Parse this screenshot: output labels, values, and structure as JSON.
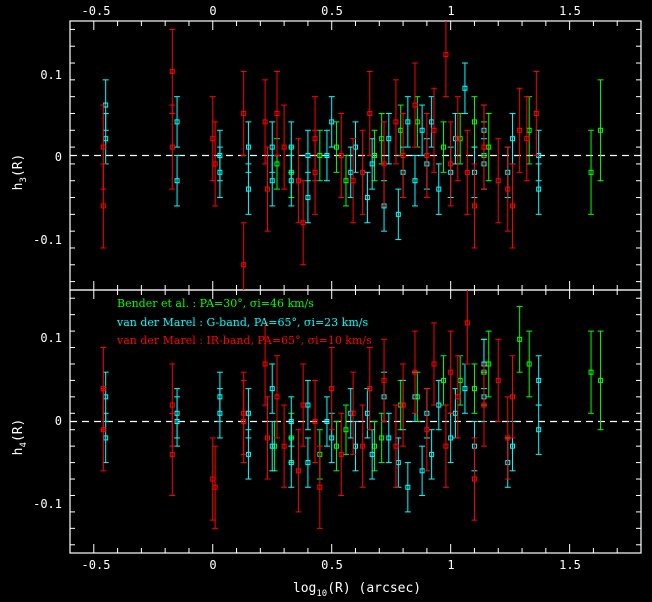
{
  "chart_data": {
    "type": "scatter",
    "panels": [
      {
        "id": "h3",
        "ylabel": "h3(R)",
        "ylabel_main": "h",
        "ylabel_sub": "3",
        "ylabel_tail": "(R)",
        "xlim": [
          -0.6,
          1.8
        ],
        "ylim": [
          -0.16,
          0.16
        ],
        "yticks": [
          0.1,
          0,
          -0.1
        ],
        "ytick_labels": [
          "0.1",
          "0",
          "-0.1"
        ],
        "zero_line": true
      },
      {
        "id": "h4",
        "ylabel": "h4(R)",
        "ylabel_main": "h",
        "ylabel_sub": "4",
        "ylabel_tail": "(R)",
        "xlim": [
          -0.6,
          1.8
        ],
        "ylim": [
          -0.16,
          0.16
        ],
        "yticks": [
          0.1,
          0,
          -0.1
        ],
        "ytick_labels": [
          "0.1",
          "0",
          "-0.1"
        ],
        "zero_line": true
      }
    ],
    "xticks": [
      -0.5,
      0,
      0.5,
      1,
      1.5
    ],
    "xtick_labels": [
      "-0.5",
      "0",
      "0.5",
      "1",
      "1.5"
    ],
    "xlabel": "log10(R) (arcsec)",
    "xlabel_main": "log",
    "xlabel_sub": "10",
    "xlabel_tail": "(R) (arcsec)",
    "legend": {
      "placement": "top-left of lower panel",
      "entries": [
        {
          "text": "Bender et al. : PA=30°, σi=46 km/s",
          "color": "#00ff00"
        },
        {
          "text": "van der Marel : G-band, PA=65°, σi=23 km/s",
          "color": "#00ffff"
        },
        {
          "text": "van der Marel : IR-band, PA=65°, σi=10 km/s",
          "color": "#ff0000"
        }
      ]
    },
    "series": [
      {
        "name": "Bender et al. : PA=30°, σi=46 km/s",
        "color": "#00ff00",
        "h3": [
          [
            0.27,
            -0.01,
            0.03
          ],
          [
            0.33,
            -0.02,
            0.03
          ],
          [
            0.45,
            0.0,
            0.03
          ],
          [
            0.52,
            0.01,
            0.03
          ],
          [
            0.56,
            -0.03,
            0.03
          ],
          [
            0.68,
            0.0,
            0.03
          ],
          [
            0.71,
            0.02,
            0.03
          ],
          [
            0.79,
            0.03,
            0.03
          ],
          [
            0.86,
            0.04,
            0.03
          ],
          [
            0.97,
            0.01,
            0.03
          ],
          [
            1.04,
            0.02,
            0.03
          ],
          [
            1.1,
            0.04,
            0.03
          ],
          [
            1.14,
            0.0,
            0.04
          ],
          [
            1.16,
            0.01,
            0.04
          ],
          [
            1.33,
            0.03,
            0.04
          ],
          [
            1.59,
            -0.02,
            0.05
          ],
          [
            1.63,
            0.03,
            0.06
          ]
        ],
        "h4": [
          [
            0.26,
            -0.03,
            0.03
          ],
          [
            0.33,
            -0.02,
            0.03
          ],
          [
            0.45,
            -0.04,
            0.03
          ],
          [
            0.52,
            -0.03,
            0.03
          ],
          [
            0.56,
            -0.01,
            0.03
          ],
          [
            0.68,
            -0.03,
            0.03
          ],
          [
            0.71,
            -0.02,
            0.03
          ],
          [
            0.79,
            0.02,
            0.03
          ],
          [
            0.86,
            0.03,
            0.03
          ],
          [
            0.97,
            0.05,
            0.03
          ],
          [
            1.04,
            0.05,
            0.03
          ],
          [
            1.1,
            0.04,
            0.03
          ],
          [
            1.14,
            0.06,
            0.04
          ],
          [
            1.16,
            0.07,
            0.04
          ],
          [
            1.29,
            0.1,
            0.04
          ],
          [
            1.33,
            0.07,
            0.04
          ],
          [
            1.59,
            0.06,
            0.05
          ],
          [
            1.63,
            0.05,
            0.06
          ]
        ]
      },
      {
        "name": "van der Marel : G-band, PA=65°, σi=23 km/s",
        "color": "#00ffff",
        "h3": [
          [
            -0.45,
            0.06,
            0.03
          ],
          [
            -0.45,
            0.02,
            0.03
          ],
          [
            -0.15,
            0.04,
            0.03
          ],
          [
            -0.15,
            -0.03,
            0.03
          ],
          [
            0.03,
            -0.02,
            0.03
          ],
          [
            0.03,
            0.0,
            0.03
          ],
          [
            0.15,
            0.01,
            0.03
          ],
          [
            0.15,
            -0.04,
            0.03
          ],
          [
            0.25,
            0.01,
            0.03
          ],
          [
            0.25,
            -0.03,
            0.03
          ],
          [
            0.33,
            0.01,
            0.03
          ],
          [
            0.33,
            -0.03,
            0.03
          ],
          [
            0.4,
            0.0,
            0.03
          ],
          [
            0.4,
            -0.05,
            0.03
          ],
          [
            0.48,
            0.0,
            0.03
          ],
          [
            0.5,
            0.04,
            0.03
          ],
          [
            0.58,
            -0.02,
            0.03
          ],
          [
            0.6,
            0.01,
            0.03
          ],
          [
            0.65,
            -0.05,
            0.03
          ],
          [
            0.67,
            -0.01,
            0.03
          ],
          [
            0.72,
            -0.06,
            0.03
          ],
          [
            0.74,
            0.02,
            0.03
          ],
          [
            0.78,
            -0.07,
            0.03
          ],
          [
            0.8,
            -0.02,
            0.03
          ],
          [
            0.82,
            0.04,
            0.03
          ],
          [
            0.85,
            -0.03,
            0.03
          ],
          [
            0.88,
            0.03,
            0.03
          ],
          [
            0.9,
            -0.01,
            0.03
          ],
          [
            0.92,
            0.04,
            0.03
          ],
          [
            0.95,
            -0.04,
            0.03
          ],
          [
            1.0,
            -0.02,
            0.03
          ],
          [
            1.02,
            0.02,
            0.03
          ],
          [
            1.06,
            0.08,
            0.03
          ],
          [
            1.1,
            -0.02,
            0.03
          ],
          [
            1.14,
            0.03,
            0.03
          ],
          [
            1.14,
            -0.01,
            0.03
          ],
          [
            1.24,
            -0.02,
            0.03
          ],
          [
            1.26,
            0.02,
            0.03
          ],
          [
            1.37,
            -0.04,
            0.03
          ],
          [
            1.37,
            0.0,
            0.03
          ]
        ],
        "h4": [
          [
            -0.45,
            0.03,
            0.03
          ],
          [
            -0.45,
            -0.02,
            0.03
          ],
          [
            -0.15,
            0.01,
            0.03
          ],
          [
            -0.15,
            0.0,
            0.03
          ],
          [
            0.03,
            0.03,
            0.03
          ],
          [
            0.03,
            0.01,
            0.03
          ],
          [
            0.15,
            0.01,
            0.03
          ],
          [
            0.15,
            -0.04,
            0.03
          ],
          [
            0.25,
            0.04,
            0.03
          ],
          [
            0.25,
            -0.03,
            0.03
          ],
          [
            0.33,
            0.0,
            0.03
          ],
          [
            0.33,
            -0.05,
            0.03
          ],
          [
            0.4,
            0.02,
            0.03
          ],
          [
            0.4,
            -0.05,
            0.03
          ],
          [
            0.48,
            0.0,
            0.03
          ],
          [
            0.5,
            -0.02,
            0.03
          ],
          [
            0.58,
            0.01,
            0.03
          ],
          [
            0.6,
            -0.03,
            0.03
          ],
          [
            0.65,
            0.01,
            0.03
          ],
          [
            0.67,
            -0.04,
            0.03
          ],
          [
            0.72,
            0.03,
            0.03
          ],
          [
            0.74,
            -0.02,
            0.03
          ],
          [
            0.78,
            -0.05,
            0.03
          ],
          [
            0.8,
            0.02,
            0.03
          ],
          [
            0.82,
            -0.08,
            0.03
          ],
          [
            0.85,
            0.03,
            0.03
          ],
          [
            0.88,
            -0.06,
            0.03
          ],
          [
            0.9,
            0.01,
            0.03
          ],
          [
            0.92,
            -0.04,
            0.03
          ],
          [
            0.95,
            0.02,
            0.03
          ],
          [
            1.0,
            -0.02,
            0.03
          ],
          [
            1.02,
            0.01,
            0.03
          ],
          [
            1.06,
            0.04,
            0.03
          ],
          [
            1.1,
            -0.03,
            0.03
          ],
          [
            1.14,
            0.07,
            0.03
          ],
          [
            1.14,
            0.03,
            0.03
          ],
          [
            1.24,
            -0.05,
            0.03
          ],
          [
            1.26,
            -0.03,
            0.03
          ],
          [
            1.37,
            0.05,
            0.03
          ],
          [
            1.37,
            -0.01,
            0.03
          ]
        ]
      },
      {
        "name": "van der Marel : IR-band, PA=65°, σi=10 km/s",
        "color": "#ff0000",
        "h3": [
          [
            -0.46,
            0.01,
            0.05
          ],
          [
            -0.46,
            -0.06,
            0.05
          ],
          [
            -0.17,
            0.1,
            0.05
          ],
          [
            -0.17,
            0.01,
            0.05
          ],
          [
            0.0,
            0.02,
            0.05
          ],
          [
            0.01,
            -0.01,
            0.05
          ],
          [
            0.13,
            0.05,
            0.05
          ],
          [
            0.13,
            -0.13,
            0.05
          ],
          [
            0.22,
            0.04,
            0.05
          ],
          [
            0.23,
            -0.04,
            0.05
          ],
          [
            0.27,
            0.05,
            0.05
          ],
          [
            0.3,
            0.01,
            0.05
          ],
          [
            0.36,
            -0.03,
            0.05
          ],
          [
            0.38,
            -0.08,
            0.05
          ],
          [
            0.43,
            -0.02,
            0.05
          ],
          [
            0.43,
            0.02,
            0.05
          ],
          [
            0.54,
            0.0,
            0.05
          ],
          [
            0.59,
            -0.03,
            0.05
          ],
          [
            0.63,
            -0.02,
            0.05
          ],
          [
            0.66,
            0.05,
            0.05
          ],
          [
            0.72,
            -0.01,
            0.05
          ],
          [
            0.77,
            0.04,
            0.05
          ],
          [
            0.8,
            0.0,
            0.05
          ],
          [
            0.85,
            0.06,
            0.05
          ],
          [
            0.9,
            0.0,
            0.05
          ],
          [
            0.93,
            0.03,
            0.05
          ],
          [
            0.98,
            0.12,
            0.05
          ],
          [
            1.0,
            -0.01,
            0.05
          ],
          [
            1.03,
            0.02,
            0.05
          ],
          [
            1.07,
            -0.02,
            0.05
          ],
          [
            1.1,
            -0.06,
            0.05
          ],
          [
            1.14,
            0.01,
            0.05
          ],
          [
            1.2,
            -0.03,
            0.05
          ],
          [
            1.24,
            -0.04,
            0.05
          ],
          [
            1.26,
            -0.06,
            0.05
          ],
          [
            1.29,
            0.03,
            0.05
          ],
          [
            1.32,
            0.02,
            0.05
          ],
          [
            1.36,
            0.05,
            0.05
          ]
        ],
        "h4": [
          [
            -0.46,
            0.04,
            0.05
          ],
          [
            -0.46,
            -0.01,
            0.05
          ],
          [
            -0.17,
            0.02,
            0.05
          ],
          [
            -0.17,
            -0.04,
            0.05
          ],
          [
            0.0,
            -0.07,
            0.05
          ],
          [
            0.01,
            -0.08,
            0.05
          ],
          [
            0.13,
            0.01,
            0.05
          ],
          [
            0.13,
            0.0,
            0.05
          ],
          [
            0.22,
            0.07,
            0.05
          ],
          [
            0.23,
            -0.02,
            0.05
          ],
          [
            0.27,
            0.03,
            0.05
          ],
          [
            0.3,
            -0.03,
            0.05
          ],
          [
            0.36,
            -0.06,
            0.05
          ],
          [
            0.38,
            0.02,
            0.05
          ],
          [
            0.43,
            0.0,
            0.05
          ],
          [
            0.45,
            -0.08,
            0.05
          ],
          [
            0.5,
            0.04,
            0.05
          ],
          [
            0.54,
            -0.04,
            0.05
          ],
          [
            0.59,
            0.01,
            0.05
          ],
          [
            0.63,
            -0.03,
            0.05
          ],
          [
            0.66,
            0.04,
            0.05
          ],
          [
            0.72,
            0.05,
            0.05
          ],
          [
            0.77,
            -0.03,
            0.05
          ],
          [
            0.8,
            0.02,
            0.05
          ],
          [
            0.85,
            0.06,
            0.05
          ],
          [
            0.9,
            -0.01,
            0.05
          ],
          [
            0.93,
            0.07,
            0.05
          ],
          [
            0.98,
            -0.03,
            0.05
          ],
          [
            1.0,
            0.06,
            0.05
          ],
          [
            1.03,
            0.03,
            0.05
          ],
          [
            1.07,
            0.12,
            0.05
          ],
          [
            1.1,
            -0.07,
            0.05
          ],
          [
            1.14,
            0.02,
            0.05
          ],
          [
            1.2,
            0.05,
            0.05
          ],
          [
            1.24,
            -0.02,
            0.05
          ],
          [
            1.26,
            0.03,
            0.05
          ]
        ]
      }
    ]
  }
}
